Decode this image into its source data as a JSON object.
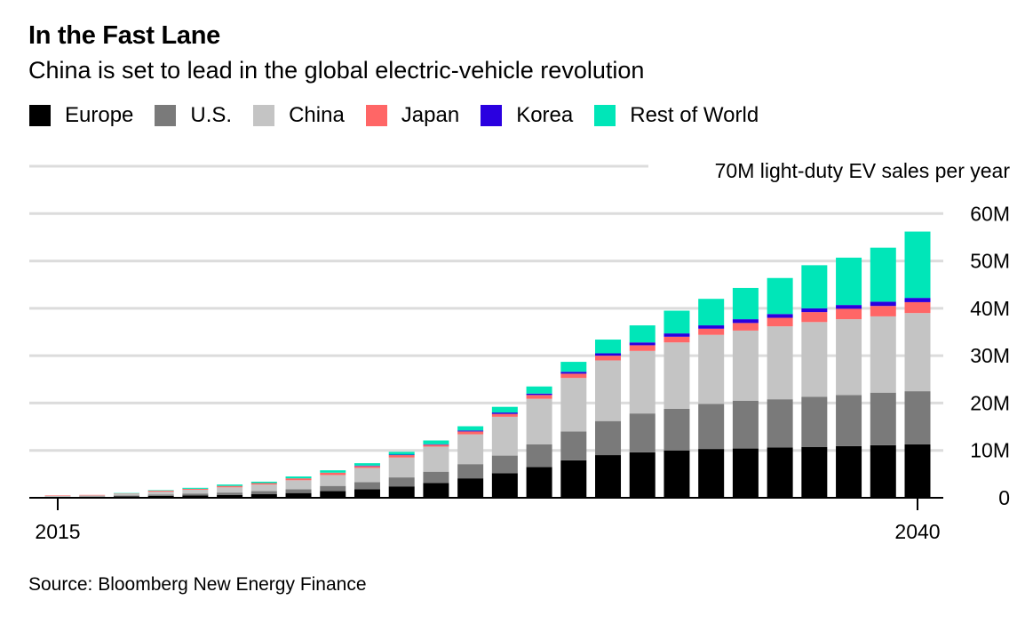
{
  "header": {
    "title": "In the Fast Lane",
    "subtitle": "China is set to lead in the global electric-vehicle revolution"
  },
  "legend": [
    {
      "label": "Europe",
      "color": "#000000"
    },
    {
      "label": "U.S.",
      "color": "#7a7a7a"
    },
    {
      "label": "China",
      "color": "#c4c4c4"
    },
    {
      "label": "Japan",
      "color": "#ff6666"
    },
    {
      "label": "Korea",
      "color": "#2a00e0"
    },
    {
      "label": "Rest of World",
      "color": "#00e6b8"
    }
  ],
  "source": "Source: Bloomberg New Energy Finance",
  "chart_data": {
    "type": "bar",
    "stacked": true,
    "annotation": "70M light-duty EV sales per year",
    "ylim": [
      0,
      70
    ],
    "yticks": [
      0,
      10,
      20,
      30,
      40,
      50,
      60
    ],
    "ytick_labels": [
      "0",
      "10M",
      "20M",
      "30M",
      "40M",
      "50M",
      "60M"
    ],
    "categories": [
      2015,
      2016,
      2017,
      2018,
      2019,
      2020,
      2021,
      2022,
      2023,
      2024,
      2025,
      2026,
      2027,
      2028,
      2029,
      2030,
      2031,
      2032,
      2033,
      2034,
      2035,
      2036,
      2037,
      2038,
      2039,
      2040
    ],
    "x_tick_labels": [
      {
        "year": 2015,
        "label": "2015"
      },
      {
        "year": 2040,
        "label": "2040"
      }
    ],
    "series": [
      {
        "name": "Europe",
        "color": "#000000",
        "values": [
          0.1,
          0.2,
          0.3,
          0.4,
          0.5,
          0.6,
          0.8,
          1.0,
          1.4,
          1.8,
          2.4,
          3.1,
          4.1,
          5.2,
          6.5,
          7.9,
          9.0,
          9.6,
          10.0,
          10.3,
          10.4,
          10.6,
          10.7,
          10.9,
          11.1,
          11.3
        ]
      },
      {
        "name": "U.S.",
        "color": "#7a7a7a",
        "values": [
          0.1,
          0.1,
          0.2,
          0.3,
          0.4,
          0.5,
          0.6,
          0.8,
          1.1,
          1.5,
          1.9,
          2.4,
          3.0,
          3.7,
          4.8,
          6.1,
          7.2,
          8.2,
          8.8,
          9.5,
          10.1,
          10.2,
          10.6,
          10.8,
          11.1,
          11.2
        ]
      },
      {
        "name": "China",
        "color": "#c4c4c4",
        "values": [
          0.2,
          0.2,
          0.3,
          0.6,
          0.8,
          1.1,
          1.4,
          1.9,
          2.3,
          3.0,
          4.2,
          5.3,
          6.3,
          8.2,
          9.6,
          11.3,
          12.8,
          13.2,
          14.0,
          14.6,
          14.8,
          15.4,
          15.8,
          16.0,
          16.1,
          16.5
        ]
      },
      {
        "name": "Japan",
        "color": "#ff6666",
        "values": [
          0.1,
          0.1,
          0.1,
          0.2,
          0.2,
          0.3,
          0.3,
          0.4,
          0.5,
          0.4,
          0.5,
          0.4,
          0.6,
          0.6,
          0.8,
          0.9,
          1.0,
          1.2,
          1.2,
          1.3,
          1.6,
          1.8,
          2.1,
          2.2,
          2.2,
          2.3
        ]
      },
      {
        "name": "Korea",
        "color": "#2a00e0",
        "values": [
          0.0,
          0.0,
          0.0,
          0.0,
          0.0,
          0.0,
          0.0,
          0.0,
          0.0,
          0.1,
          0.1,
          0.1,
          0.2,
          0.3,
          0.3,
          0.4,
          0.5,
          0.6,
          0.7,
          0.7,
          0.8,
          0.8,
          0.8,
          0.8,
          0.9,
          0.9
        ]
      },
      {
        "name": "Rest of World",
        "color": "#00e6b8",
        "values": [
          0.0,
          0.0,
          0.1,
          0.1,
          0.2,
          0.3,
          0.3,
          0.4,
          0.5,
          0.5,
          0.6,
          0.8,
          0.9,
          1.2,
          1.5,
          2.1,
          2.9,
          3.6,
          4.8,
          5.6,
          6.6,
          7.6,
          9.1,
          10.0,
          11.4,
          14.0
        ]
      }
    ]
  }
}
